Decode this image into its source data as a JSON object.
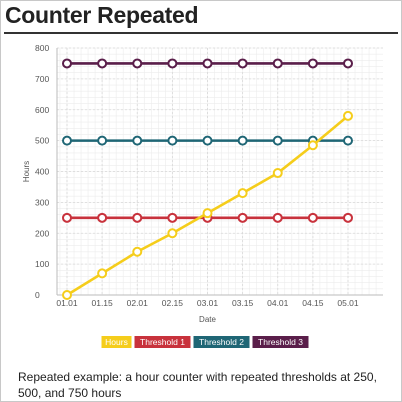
{
  "page": {
    "title": "Counter Repeated",
    "caption": "Repeated example: a hour counter with repeated thresholds at 250, 500, and 750 hours"
  },
  "chart_data": {
    "type": "line",
    "title": "",
    "xlabel": "Date",
    "ylabel": "Hours",
    "categories": [
      "01.01",
      "01.15",
      "02.01",
      "02.15",
      "03.01",
      "03.15",
      "04.01",
      "04.15",
      "05.01"
    ],
    "ylim": [
      0,
      800
    ],
    "yticks": [
      0,
      100,
      200,
      300,
      400,
      500,
      600,
      700,
      800
    ],
    "grid": true,
    "legend_position": "bottom",
    "series": [
      {
        "name": "Hours",
        "color": "#f5cd1b",
        "values": [
          0,
          70,
          140,
          200,
          265,
          330,
          395,
          485,
          580
        ]
      },
      {
        "name": "Threshold 1",
        "color": "#c8323c",
        "values": [
          250,
          250,
          250,
          250,
          250,
          250,
          250,
          250,
          250
        ]
      },
      {
        "name": "Threshold 2",
        "color": "#1f6675",
        "values": [
          500,
          500,
          500,
          500,
          500,
          500,
          500,
          500,
          500
        ]
      },
      {
        "name": "Threshold 3",
        "color": "#5a1e4a",
        "values": [
          750,
          750,
          750,
          750,
          750,
          750,
          750,
          750,
          750
        ]
      }
    ]
  }
}
